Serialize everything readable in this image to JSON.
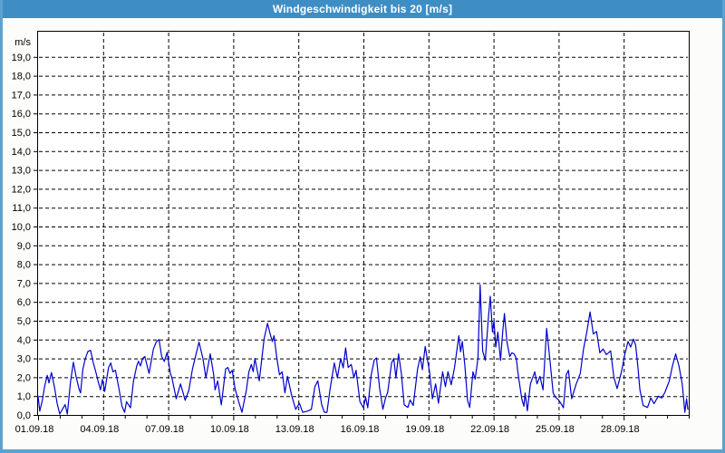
{
  "window": {
    "title": "Windgeschwindigkeit bis 20 [m/s]",
    "title_bar_color": "#3E8EC4",
    "panel_color": "#FCFDFA",
    "frame_border_color": "#5BA2D0"
  },
  "chart_data": {
    "type": "line",
    "title": "Windgeschwindigkeit bis 20 [m/s]",
    "ylabel": "m/s",
    "unit_label": "m/s",
    "ylim": [
      0,
      20
    ],
    "xlim_days": [
      0,
      30
    ],
    "grid": "dashed",
    "legend": "none",
    "line_color": "#0000CC",
    "plot_bg_color": "#FFFFFF",
    "grid_color": "#000000",
    "y_tick_labels": [
      "0,0",
      "1,0",
      "2,0",
      "3,0",
      "4,0",
      "5,0",
      "6,0",
      "7,0",
      "8,0",
      "9,0",
      "10,0",
      "11,0",
      "12,0",
      "13,0",
      "14,0",
      "15,0",
      "16,0",
      "17,0",
      "18,0",
      "19,0"
    ],
    "y_tick_values": [
      0,
      1,
      2,
      3,
      4,
      5,
      6,
      7,
      8,
      9,
      10,
      11,
      12,
      13,
      14,
      15,
      16,
      17,
      18,
      19
    ],
    "x_tick_labels": [
      "01.09.18",
      "04.09.18",
      "07.09.18",
      "10.09.18",
      "13.09.18",
      "16.09.18",
      "19.09.18",
      "22.09.18",
      "25.09.18",
      "28.09.18"
    ],
    "x_tick_days": [
      0,
      3,
      6,
      9,
      12,
      15,
      18,
      21,
      24,
      27
    ],
    "x_minor_tick_interval_days": 1,
    "series": [
      {
        "name": "Windgeschwindigkeit",
        "points": [
          [
            0.0,
            1.0
          ],
          [
            0.08,
            0.2
          ],
          [
            0.2,
            0.8
          ],
          [
            0.3,
            1.5
          ],
          [
            0.42,
            2.1
          ],
          [
            0.5,
            1.7
          ],
          [
            0.62,
            2.25
          ],
          [
            0.75,
            1.5
          ],
          [
            0.88,
            0.6
          ],
          [
            1.0,
            0.05
          ],
          [
            1.12,
            0.3
          ],
          [
            1.25,
            0.55
          ],
          [
            1.35,
            0.05
          ],
          [
            1.5,
            1.8
          ],
          [
            1.63,
            2.8
          ],
          [
            1.75,
            2.05
          ],
          [
            1.9,
            1.33
          ],
          [
            1.96,
            1.17
          ],
          [
            2.07,
            2.44
          ],
          [
            2.18,
            3.0
          ],
          [
            2.3,
            3.37
          ],
          [
            2.42,
            3.43
          ],
          [
            2.55,
            2.76
          ],
          [
            2.68,
            2.21
          ],
          [
            2.76,
            1.81
          ],
          [
            2.88,
            1.33
          ],
          [
            2.97,
            1.89
          ],
          [
            3.07,
            1.25
          ],
          [
            3.25,
            2.52
          ],
          [
            3.35,
            2.76
          ],
          [
            3.45,
            2.29
          ],
          [
            3.57,
            2.37
          ],
          [
            3.74,
            1.33
          ],
          [
            3.87,
            0.46
          ],
          [
            3.99,
            0.14
          ],
          [
            4.08,
            0.7
          ],
          [
            4.26,
            0.38
          ],
          [
            4.4,
            1.8
          ],
          [
            4.55,
            2.6
          ],
          [
            4.63,
            2.85
          ],
          [
            4.72,
            2.6
          ],
          [
            4.82,
            3.0
          ],
          [
            4.92,
            3.1
          ],
          [
            5.05,
            2.5
          ],
          [
            5.12,
            2.2
          ],
          [
            5.32,
            3.5
          ],
          [
            5.45,
            3.87
          ],
          [
            5.58,
            4.0
          ],
          [
            5.7,
            3.1
          ],
          [
            5.82,
            2.84
          ],
          [
            5.95,
            3.32
          ],
          [
            6.1,
            2.2
          ],
          [
            6.17,
            1.97
          ],
          [
            6.37,
            0.86
          ],
          [
            6.57,
            1.65
          ],
          [
            6.78,
            0.78
          ],
          [
            6.95,
            1.3
          ],
          [
            7.12,
            2.44
          ],
          [
            7.3,
            3.3
          ],
          [
            7.42,
            3.87
          ],
          [
            7.6,
            3.0
          ],
          [
            7.74,
            1.97
          ],
          [
            7.94,
            3.24
          ],
          [
            8.1,
            2.1
          ],
          [
            8.16,
            1.33
          ],
          [
            8.28,
            1.81
          ],
          [
            8.45,
            0.54
          ],
          [
            8.65,
            2.44
          ],
          [
            8.75,
            2.52
          ],
          [
            8.85,
            2.2
          ],
          [
            8.95,
            2.37
          ],
          [
            9.08,
            1.41
          ],
          [
            9.25,
            0.7
          ],
          [
            9.4,
            0.14
          ],
          [
            9.6,
            1.3
          ],
          [
            9.72,
            2.29
          ],
          [
            9.83,
            2.68
          ],
          [
            9.92,
            2.3
          ],
          [
            10.0,
            3.0
          ],
          [
            10.2,
            1.81
          ],
          [
            10.42,
            4.03
          ],
          [
            10.58,
            4.86
          ],
          [
            10.7,
            4.3
          ],
          [
            10.8,
            3.9
          ],
          [
            10.88,
            4.2
          ],
          [
            11.0,
            3.08
          ],
          [
            11.13,
            2.13
          ],
          [
            11.25,
            2.29
          ],
          [
            11.38,
            1.17
          ],
          [
            11.5,
            2.05
          ],
          [
            11.7,
            1.0
          ],
          [
            11.88,
            0.3
          ],
          [
            12.05,
            0.62
          ],
          [
            12.2,
            0.14
          ],
          [
            12.42,
            0.2
          ],
          [
            12.6,
            0.3
          ],
          [
            12.76,
            1.49
          ],
          [
            12.9,
            1.81
          ],
          [
            13.08,
            0.54
          ],
          [
            13.2,
            0.14
          ],
          [
            13.32,
            0.14
          ],
          [
            13.46,
            1.33
          ],
          [
            13.66,
            2.76
          ],
          [
            13.8,
            1.97
          ],
          [
            13.95,
            3.0
          ],
          [
            14.07,
            2.5
          ],
          [
            14.18,
            3.56
          ],
          [
            14.3,
            2.52
          ],
          [
            14.44,
            2.68
          ],
          [
            14.56,
            1.97
          ],
          [
            14.66,
            2.37
          ],
          [
            14.84,
            0.7
          ],
          [
            15.0,
            0.38
          ],
          [
            15.1,
            0.94
          ],
          [
            15.2,
            0.38
          ],
          [
            15.36,
            2.13
          ],
          [
            15.5,
            2.92
          ],
          [
            15.6,
            3.03
          ],
          [
            15.75,
            1.41
          ],
          [
            15.9,
            0.3
          ],
          [
            16.02,
            0.9
          ],
          [
            16.12,
            1.2
          ],
          [
            16.3,
            2.76
          ],
          [
            16.4,
            3.0
          ],
          [
            16.5,
            1.97
          ],
          [
            16.62,
            3.24
          ],
          [
            16.75,
            2.2
          ],
          [
            16.88,
            0.54
          ],
          [
            17.05,
            0.4
          ],
          [
            17.15,
            0.8
          ],
          [
            17.3,
            0.5
          ],
          [
            17.5,
            2.44
          ],
          [
            17.62,
            3.08
          ],
          [
            17.72,
            2.4
          ],
          [
            17.85,
            3.63
          ],
          [
            18.05,
            2.29
          ],
          [
            18.18,
            0.86
          ],
          [
            18.33,
            1.65
          ],
          [
            18.46,
            0.62
          ],
          [
            18.65,
            2.29
          ],
          [
            18.78,
            1.5
          ],
          [
            18.9,
            2.3
          ],
          [
            19.05,
            1.6
          ],
          [
            19.2,
            2.5
          ],
          [
            19.4,
            4.2
          ],
          [
            19.48,
            3.35
          ],
          [
            19.56,
            3.9
          ],
          [
            19.68,
            2.6
          ],
          [
            19.8,
            0.78
          ],
          [
            19.9,
            0.4
          ],
          [
            20.05,
            2.29
          ],
          [
            20.15,
            1.9
          ],
          [
            20.28,
            3.0
          ],
          [
            20.38,
            6.9
          ],
          [
            20.5,
            3.4
          ],
          [
            20.62,
            2.9
          ],
          [
            20.75,
            4.98
          ],
          [
            20.85,
            6.3
          ],
          [
            20.95,
            4.4
          ],
          [
            21.02,
            5.0
          ],
          [
            21.1,
            3.6
          ],
          [
            21.2,
            4.4
          ],
          [
            21.32,
            2.9
          ],
          [
            21.42,
            4.4
          ],
          [
            21.5,
            5.38
          ],
          [
            21.62,
            3.87
          ],
          [
            21.75,
            3.1
          ],
          [
            21.85,
            3.3
          ],
          [
            21.95,
            3.24
          ],
          [
            22.05,
            3.0
          ],
          [
            22.12,
            2.29
          ],
          [
            22.3,
            0.86
          ],
          [
            22.4,
            0.46
          ],
          [
            22.46,
            1.17
          ],
          [
            22.56,
            0.22
          ],
          [
            22.7,
            1.65
          ],
          [
            22.9,
            2.29
          ],
          [
            23.0,
            1.65
          ],
          [
            23.14,
            2.05
          ],
          [
            23.28,
            1.33
          ],
          [
            23.45,
            4.59
          ],
          [
            23.6,
            2.92
          ],
          [
            23.75,
            1.17
          ],
          [
            23.85,
            0.95
          ],
          [
            24.0,
            0.8
          ],
          [
            24.1,
            0.62
          ],
          [
            24.22,
            0.38
          ],
          [
            24.35,
            2.13
          ],
          [
            24.45,
            2.37
          ],
          [
            24.6,
            0.86
          ],
          [
            24.8,
            1.6
          ],
          [
            25.0,
            2.2
          ],
          [
            25.15,
            3.5
          ],
          [
            25.3,
            4.4
          ],
          [
            25.45,
            5.46
          ],
          [
            25.6,
            4.3
          ],
          [
            25.75,
            4.43
          ],
          [
            25.9,
            3.3
          ],
          [
            26.05,
            3.5
          ],
          [
            26.2,
            3.2
          ],
          [
            26.4,
            3.4
          ],
          [
            26.55,
            2.0
          ],
          [
            26.7,
            1.4
          ],
          [
            26.9,
            2.3
          ],
          [
            27.05,
            3.2
          ],
          [
            27.2,
            3.9
          ],
          [
            27.32,
            3.6
          ],
          [
            27.45,
            4.03
          ],
          [
            27.55,
            3.7
          ],
          [
            27.65,
            2.6
          ],
          [
            27.75,
            1.33
          ],
          [
            27.9,
            0.5
          ],
          [
            28.1,
            0.4
          ],
          [
            28.25,
            0.9
          ],
          [
            28.4,
            0.6
          ],
          [
            28.6,
            1.0
          ],
          [
            28.75,
            0.9
          ],
          [
            28.9,
            1.2
          ],
          [
            29.1,
            1.8
          ],
          [
            29.25,
            2.6
          ],
          [
            29.4,
            3.24
          ],
          [
            29.55,
            2.6
          ],
          [
            29.7,
            1.65
          ],
          [
            29.82,
            0.14
          ],
          [
            29.9,
            0.86
          ],
          [
            29.96,
            0.3
          ]
        ]
      }
    ]
  }
}
